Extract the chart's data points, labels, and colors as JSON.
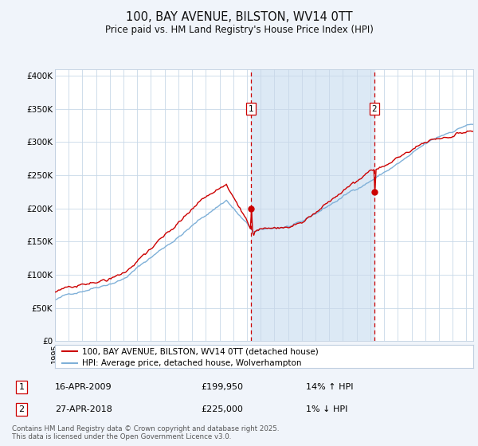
{
  "title": "100, BAY AVENUE, BILSTON, WV14 0TT",
  "subtitle": "Price paid vs. HM Land Registry's House Price Index (HPI)",
  "background_color": "#f0f4fa",
  "plot_bg_color": "#ffffff",
  "highlight_bg_color": "#dce9f5",
  "red_line_color": "#cc0000",
  "blue_line_color": "#7fb0d8",
  "sale1_date": "16-APR-2009",
  "sale1_price": 199950,
  "sale1_label": "14% ↑ HPI",
  "sale2_date": "27-APR-2018",
  "sale2_price": 225000,
  "sale2_label": "1% ↓ HPI",
  "sale1_x": 2009.29,
  "sale2_x": 2018.32,
  "yticks": [
    0,
    50000,
    100000,
    150000,
    200000,
    250000,
    300000,
    350000,
    400000
  ],
  "ytick_labels": [
    "£0",
    "£50K",
    "£100K",
    "£150K",
    "£200K",
    "£250K",
    "£300K",
    "£350K",
    "£400K"
  ],
  "legend_label1": "100, BAY AVENUE, BILSTON, WV14 0TT (detached house)",
  "legend_label2": "HPI: Average price, detached house, Wolverhampton",
  "footer": "Contains HM Land Registry data © Crown copyright and database right 2025.\nThis data is licensed under the Open Government Licence v3.0."
}
